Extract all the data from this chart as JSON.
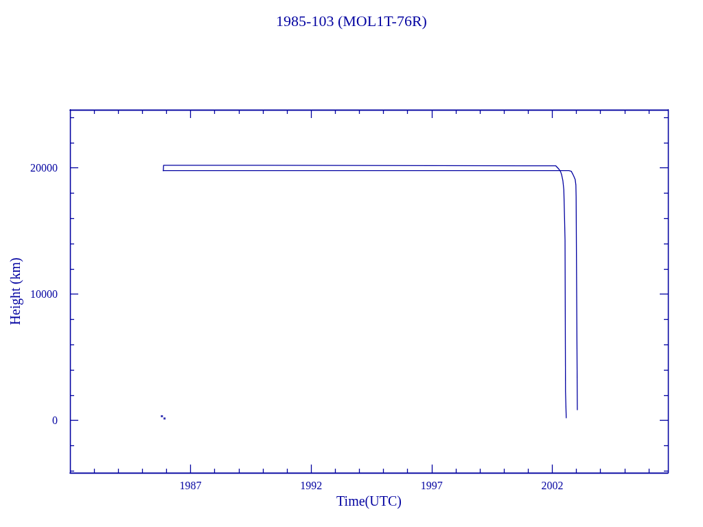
{
  "chart_data": {
    "type": "line",
    "title": "1985-103 (MOL1T-76R)",
    "xlabel": "Time(UTC)",
    "ylabel": "Height (km)",
    "xlim": [
      1982,
      2006.8
    ],
    "ylim": [
      -4150,
      24600
    ],
    "xticks": [
      {
        "value": 1983,
        "label": null
      },
      {
        "value": 1984,
        "label": null
      },
      {
        "value": 1985,
        "label": null
      },
      {
        "value": 1986,
        "label": null
      },
      1987,
      {
        "value": 1988,
        "label": null
      },
      {
        "value": 1989,
        "label": null
      },
      {
        "value": 1990,
        "label": null
      },
      {
        "value": 1991,
        "label": null
      },
      1992,
      {
        "value": 1993,
        "label": null
      },
      {
        "value": 1994,
        "label": null
      },
      {
        "value": 1995,
        "label": null
      },
      {
        "value": 1996,
        "label": null
      },
      1997,
      {
        "value": 1998,
        "label": null
      },
      {
        "value": 1999,
        "label": null
      },
      {
        "value": 2000,
        "label": null
      },
      {
        "value": 2001,
        "label": null
      },
      2002,
      {
        "value": 2003,
        "label": null
      },
      {
        "value": 2004,
        "label": null
      },
      {
        "value": 2005,
        "label": null
      },
      {
        "value": 2006,
        "label": null
      }
    ],
    "yticks": [
      {
        "value": -4000,
        "label": null
      },
      {
        "value": -2000,
        "label": null
      },
      0,
      {
        "value": 2000,
        "label": null
      },
      {
        "value": 4000,
        "label": null
      },
      {
        "value": 6000,
        "label": null
      },
      {
        "value": 8000,
        "label": null
      },
      10000,
      {
        "value": 12000,
        "label": null
      },
      {
        "value": 14000,
        "label": null
      },
      {
        "value": 16000,
        "label": null
      },
      {
        "value": 18000,
        "label": null
      },
      20000,
      {
        "value": 22000,
        "label": null
      },
      {
        "value": 24000,
        "label": null
      }
    ],
    "marker": "none",
    "line_style": "solid",
    "series": [
      {
        "color": "#0000a0",
        "x": [
          1985.87,
          1985.88,
          1990,
          2002.15,
          2002.27,
          2002.34,
          2002.39,
          2002.44,
          2002.48,
          2002.51,
          2002.53,
          2002.55,
          2002.58
        ],
        "values": [
          19780,
          20200,
          20200,
          20160,
          19910,
          19730,
          19450,
          19000,
          18270,
          16000,
          14280,
          2290,
          200
        ]
      },
      {
        "color": "#0000a0",
        "x": [
          1985.86,
          2002.69,
          2002.79,
          2002.88,
          2002.95,
          2002.98,
          2002.99,
          2003.04
        ],
        "values": [
          19780,
          19780,
          19730,
          19400,
          19090,
          18640,
          17730,
          840
        ]
      },
      {
        "type": "scatter",
        "marker": "square",
        "color": "#0000a0",
        "x": [
          1985.81,
          1985.92
        ],
        "values": [
          330,
          150
        ]
      }
    ]
  }
}
